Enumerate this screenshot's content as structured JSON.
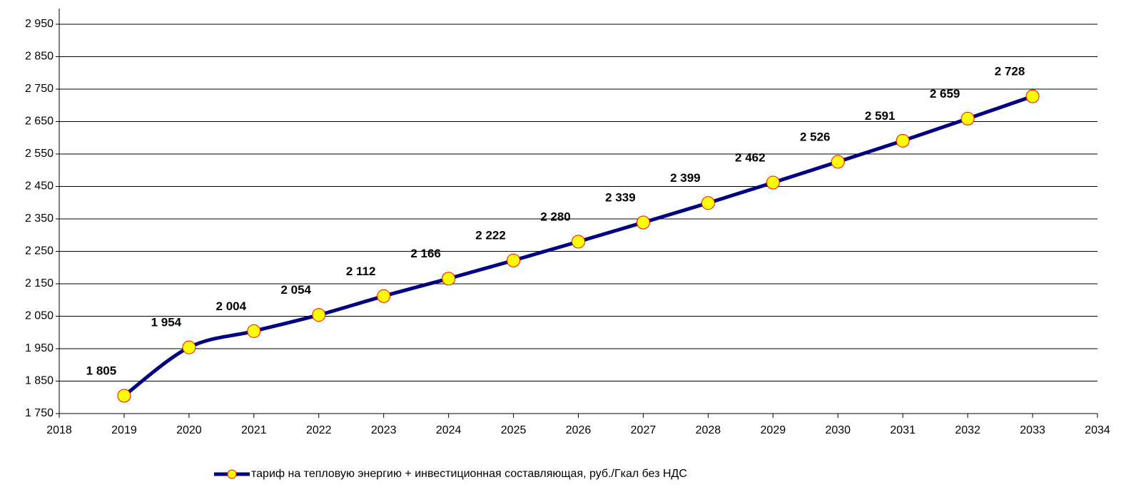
{
  "chart_data": {
    "type": "line",
    "x": [
      2019,
      2020,
      2021,
      2022,
      2023,
      2024,
      2025,
      2026,
      2027,
      2028,
      2029,
      2030,
      2031,
      2032,
      2033
    ],
    "series": [
      {
        "name": "тариф на тепловую энергию + инвестиционная составляющая, руб./Гкал  без НДС",
        "color": "#000080",
        "marker_color": "#ffff00",
        "values": [
          1805,
          1954,
          2004,
          2054,
          2112,
          2166,
          2222,
          2280,
          2339,
          2399,
          2462,
          2526,
          2591,
          2659,
          2728
        ],
        "value_labels": [
          "1 805",
          "1 954",
          "2 004",
          "2 054",
          "2 112",
          "2 166",
          "2 222",
          "2 280",
          "2 339",
          "2 399",
          "2 462",
          "2 526",
          "2 591",
          "2 659",
          "2 728"
        ]
      }
    ],
    "xlim": [
      2018,
      2034
    ],
    "xticks": [
      2018,
      2019,
      2020,
      2021,
      2022,
      2023,
      2024,
      2025,
      2026,
      2027,
      2028,
      2029,
      2030,
      2031,
      2032,
      2033,
      2034
    ],
    "ylim": [
      1750,
      2950
    ],
    "yticks": [
      {
        "value": 1750,
        "label": "1 750"
      },
      {
        "value": 1850,
        "label": "1 850"
      },
      {
        "value": 1950,
        "label": "1 950"
      },
      {
        "value": 2050,
        "label": "2 050"
      },
      {
        "value": 2150,
        "label": "2 150"
      },
      {
        "value": 2250,
        "label": "2 250"
      },
      {
        "value": 2350,
        "label": "2 350"
      },
      {
        "value": 2450,
        "label": "2 450"
      },
      {
        "value": 2550,
        "label": "2 550"
      },
      {
        "value": 2650,
        "label": "2 650"
      },
      {
        "value": 2750,
        "label": "2 750"
      },
      {
        "value": 2850,
        "label": "2 850"
      },
      {
        "value": 2950,
        "label": "2 950"
      }
    ],
    "grid": true,
    "legend": "bottom"
  }
}
